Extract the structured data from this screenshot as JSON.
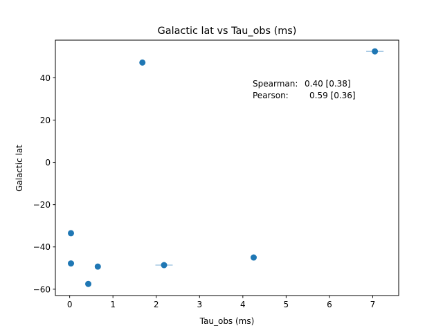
{
  "chart_data": {
    "type": "scatter",
    "title": "Galactic lat vs Tau_obs (ms)",
    "xlabel": "Tau_obs (ms)",
    "ylabel": "Galactic lat",
    "xlim": [
      -0.33,
      7.6
    ],
    "ylim": [
      -63.0,
      57.8
    ],
    "xticks": [
      0,
      1,
      2,
      3,
      4,
      5,
      6,
      7
    ],
    "yticks": [
      -60,
      -40,
      -20,
      0,
      20,
      40
    ],
    "grid": false,
    "marker_color": "#1f77b4",
    "errorbar_color": "#a6c8e4",
    "points": [
      {
        "x": 1.68,
        "y": 47.2
      },
      {
        "x": 7.05,
        "y": 52.5,
        "xerr": 0.2
      },
      {
        "x": 0.03,
        "y": -33.5
      },
      {
        "x": 0.03,
        "y": -47.8
      },
      {
        "x": 0.65,
        "y": -49.3
      },
      {
        "x": 0.43,
        "y": -57.5
      },
      {
        "x": 2.18,
        "y": -48.6,
        "xerr": 0.2
      },
      {
        "x": 4.25,
        "y": -45.0
      }
    ],
    "annotations": {
      "spearman_label": "Spearman:",
      "spearman_value": "0.40 [0.38]",
      "pearson_label": "Pearson:",
      "pearson_value": "0.59 [0.36]"
    }
  }
}
